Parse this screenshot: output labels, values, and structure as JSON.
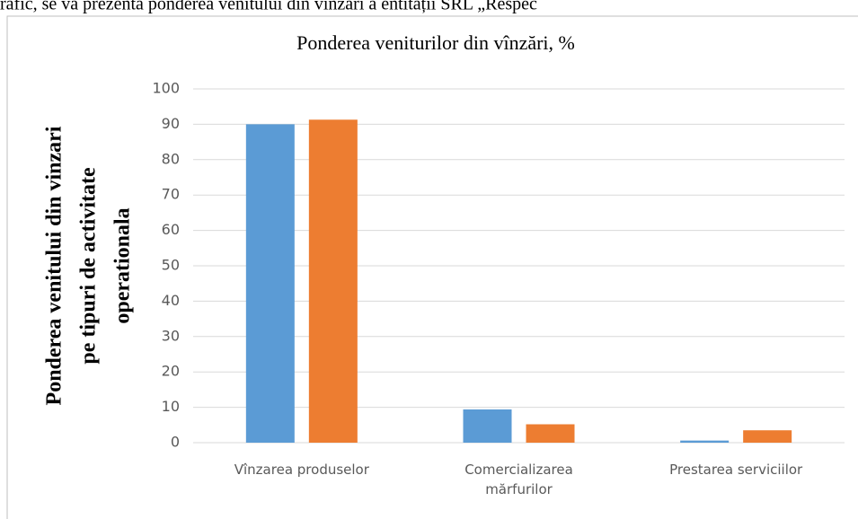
{
  "context_text": "rafic, se va prezenta ponderea venitului din vînzări a entității SRL „Respec",
  "chart_data": {
    "type": "bar",
    "title": "Ponderea veniturilor  din vînzări, %",
    "ylabel": [
      "Ponderea venitului din vinzari",
      "pe tipuri de activitate",
      "operationala"
    ],
    "categories": [
      "Vînzarea produselor",
      "Comercializarea mărfurilor",
      "Prestarea serviciilor"
    ],
    "series": [
      {
        "color": "#5b9bd5",
        "values": [
          90,
          9.4,
          0.6
        ]
      },
      {
        "color": "#ed7d31",
        "values": [
          91.3,
          5.2,
          3.5
        ]
      }
    ],
    "ylim": [
      0,
      100
    ],
    "yticks": [
      0,
      10,
      20,
      30,
      40,
      50,
      60,
      70,
      80,
      90,
      100
    ],
    "grid": true
  }
}
